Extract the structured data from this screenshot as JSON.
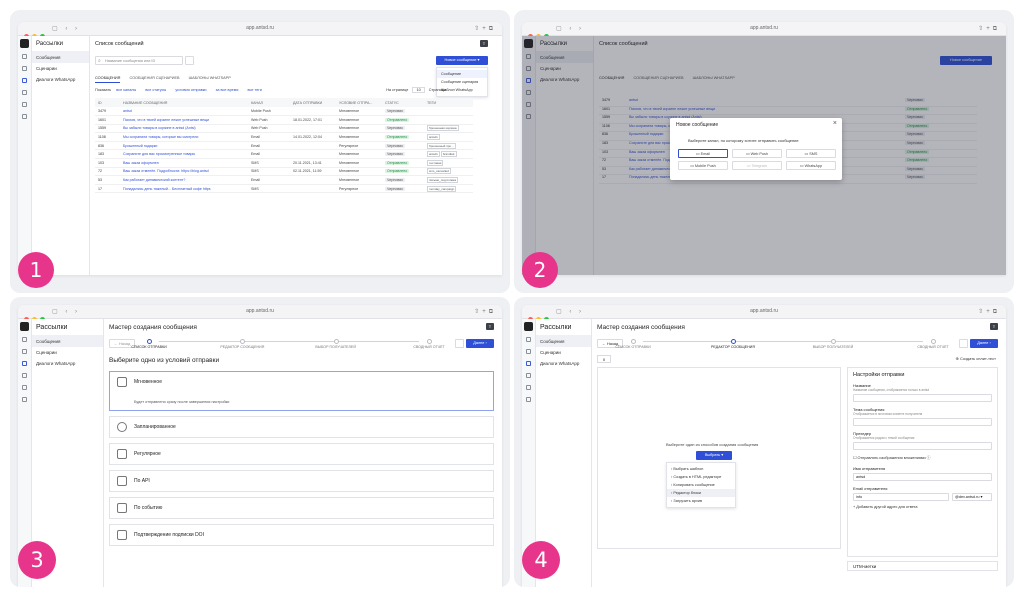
{
  "browser": {
    "url": "app.antsd.ru"
  },
  "sidebar": {
    "title": "Рассылки",
    "items": [
      "Сообщения",
      "Сценарии",
      "Диалоги WhatsApp"
    ]
  },
  "panel1": {
    "badge": "1",
    "title": "Список сообщений",
    "search_placeholder": "Название сообщения или ID",
    "new_button": "Новое сообщение",
    "dropdown": [
      "Сообщение",
      "Сообщение сценария",
      "Шаблон WhatsApp"
    ],
    "tabs": [
      "СООБЩЕНИЯ",
      "СООБЩЕНИЯ СЦЕНАРИЕВ",
      "ШАБЛОНЫ WHATSAPP"
    ],
    "filters": [
      "Показать",
      "все каналы",
      "все статусы",
      "условия отправки",
      "за все время",
      "все теги"
    ],
    "per_page": "На странице",
    "per_page_value": "10",
    "page_label": "Страница",
    "columns": [
      "ID",
      "НАЗВАНИЕ СООБЩЕНИЯ",
      "КАНАЛ",
      "ДАТА ОТПРАВКИ",
      "УСЛОВИЕ ОТПРА...",
      "СТАТУС",
      "ТЕГИ"
    ],
    "rows": [
      {
        "id": "3479",
        "name": "antsd",
        "channel": "Mobile Push",
        "date": "",
        "cond": "Мгновенное",
        "status": "Черновик",
        "tags": []
      },
      {
        "id": "1601",
        "name": "Психов, что в твоей корзине лежит успешные вещи",
        "channel": "Web Push",
        "date": "18.01.2022, 17:01",
        "cond": "Мгновенное",
        "status": "Отправлено",
        "tags": []
      },
      {
        "id": "1559",
        "name": "Вы забыли товары в корзине в antsd (Antsi)",
        "channel": "Web Push",
        "date": "",
        "cond": "Мгновенное",
        "status": "Черновик",
        "tags": [
          "брошенная корзина"
        ]
      },
      {
        "id": "1108",
        "name": "Мы сохранили товары, которые вы смотрели",
        "channel": "Email",
        "date": "14.01.2022, 12:04",
        "cond": "Мгновенное",
        "status": "Отправлено",
        "tags": [
          "antsdx"
        ]
      },
      {
        "id": "836",
        "name": "Брошенный подарки",
        "channel": "Email",
        "date": "",
        "cond": "Регулярное",
        "status": "Черновик",
        "tags": [
          "брошенный про..."
        ]
      },
      {
        "id": "183",
        "name": "Сохраните для вас просмотренные товары",
        "channel": "Email",
        "date": "",
        "cond": "Мгновенное",
        "status": "Черновик",
        "tags": [
          "antsdx",
          "brandtek"
        ]
      },
      {
        "id": "103",
        "name": "Ваш заказ оформлен",
        "channel": "SMS",
        "date": "20.11.2021, 13:41",
        "cond": "Мгновенное",
        "status": "Отправлено",
        "tags": [
          "тестовая"
        ]
      },
      {
        "id": "72",
        "name": "Ваш заказ отменён. Подробности: https://blog.antsd",
        "channel": "SMS",
        "date": "02.11.2021, 11:59",
        "cond": "Мгновенное",
        "status": "Отправлено",
        "tags": [
          "sms_cancelled"
        ]
      },
      {
        "id": "53",
        "name": "Как работает динамический контент?",
        "channel": "Email",
        "date": "",
        "cond": "Мгновенное",
        "status": "Черновик",
        "tags": [
          "письмо_подготовка"
        ]
      },
      {
        "id": "17",
        "name": "Попадались день тяжелый... Бесплатный кофе https",
        "channel": "SMS",
        "date": "",
        "cond": "Регулярное",
        "status": "Черновик",
        "tags": [
          "monday_campaign"
        ]
      }
    ]
  },
  "panel2": {
    "badge": "2",
    "modal_title": "Новое сообщение",
    "modal_prompt": "Выберите канал, по которому хотите отправить сообщение",
    "channels": [
      "Email",
      "Web Push",
      "SMS",
      "Mobile Push",
      "Telegram",
      "WhatsApp"
    ],
    "close": "×"
  },
  "panel3": {
    "badge": "3",
    "title": "Мастер создания сообщения",
    "back": "Назад",
    "next": "Далее",
    "steps": [
      "СПИСОК ОТПРАВКИ",
      "РЕДАКТОР СООБЩЕНИЯ",
      "ВЫБОР ПОЛУЧАТЕЛЕЙ",
      "СВОДНЫЙ ОТЧЁТ"
    ],
    "heading": "Выберите одно из условий отправки",
    "options": [
      {
        "label": "Мгновенное",
        "desc": "Будет отправлено сразу после завершения настройки",
        "icon": "instant-icon"
      },
      {
        "label": "Запланированное",
        "icon": "clock-icon"
      },
      {
        "label": "Регулярное",
        "icon": "calendar-icon"
      },
      {
        "label": "По API",
        "icon": "api-icon"
      },
      {
        "label": "По событию",
        "icon": "event-icon"
      },
      {
        "label": "Подтверждение подписки DOI",
        "icon": "mail-icon"
      }
    ]
  },
  "panel4": {
    "badge": "4",
    "title": "Мастер создания сообщения",
    "back": "Назад",
    "next": "Далее",
    "steps": [
      "СПИСОК ОТПРАВКИ",
      "РЕДАКТОР СООБЩЕНИЯ",
      "ВЫБОР ПОЛУЧАТЕЛЕЙ",
      "СВОДНЫЙ ОТЧЁТ"
    ],
    "create_test": "Создать сплит-тест",
    "editor_prompt": "Выберите один из способов создания сообщения",
    "select_button": "Выбрать",
    "menu": [
      "Выбрать шаблон",
      "Создать в HTML редакторе",
      "Копировать сообщение",
      "Редактор блоки",
      "Загрузить архив"
    ],
    "settings_title": "Настройки отправки",
    "fields": [
      {
        "label": "Название",
        "hint": "Название сообщения, отображается только в antsd"
      },
      {
        "label": "Тема сообщения",
        "hint": "Отображается в почтовом клиенте получателя"
      },
      {
        "label": "Прехедер",
        "hint": "Отображается рядом с темой сообщения"
      }
    ],
    "checkbox": "Отправлять изображения вложениями",
    "sender_name_label": "Имя отправителя",
    "sender_name_value": "antsd",
    "sender_email_label": "Email отправителя",
    "sender_email_value": "info",
    "sender_domain": "@dev.antsd.ru",
    "add_link": "Добавить другой адрес для ответа",
    "utm": "UTM-метки"
  }
}
